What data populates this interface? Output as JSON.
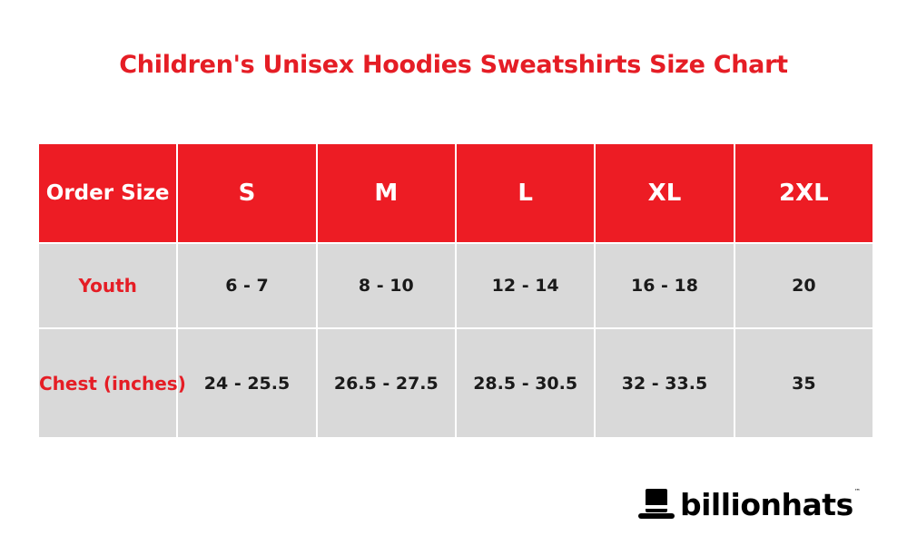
{
  "title": "Children's Unisex Hoodies Sweatshirts Size Chart",
  "table": {
    "header": [
      "Order Size",
      "S",
      "M",
      "L",
      "XL",
      "2XL"
    ],
    "rows": [
      {
        "label": "Youth",
        "values": [
          "6 - 7",
          "8 - 10",
          "12 - 14",
          "16 - 18",
          "20"
        ]
      },
      {
        "label": "Chest (inches)",
        "values": [
          "24 - 25.5",
          "26.5 - 27.5",
          "28.5 - 30.5",
          "32 - 33.5",
          "35"
        ]
      }
    ]
  },
  "brand": {
    "name": "billionhats",
    "trademark": "™",
    "logo_icon": "top-hat-icon"
  },
  "colors": {
    "accent_red": "#ed1c24",
    "cell_gray": "#d9d9d9",
    "text_dark": "#1a1a1a"
  }
}
